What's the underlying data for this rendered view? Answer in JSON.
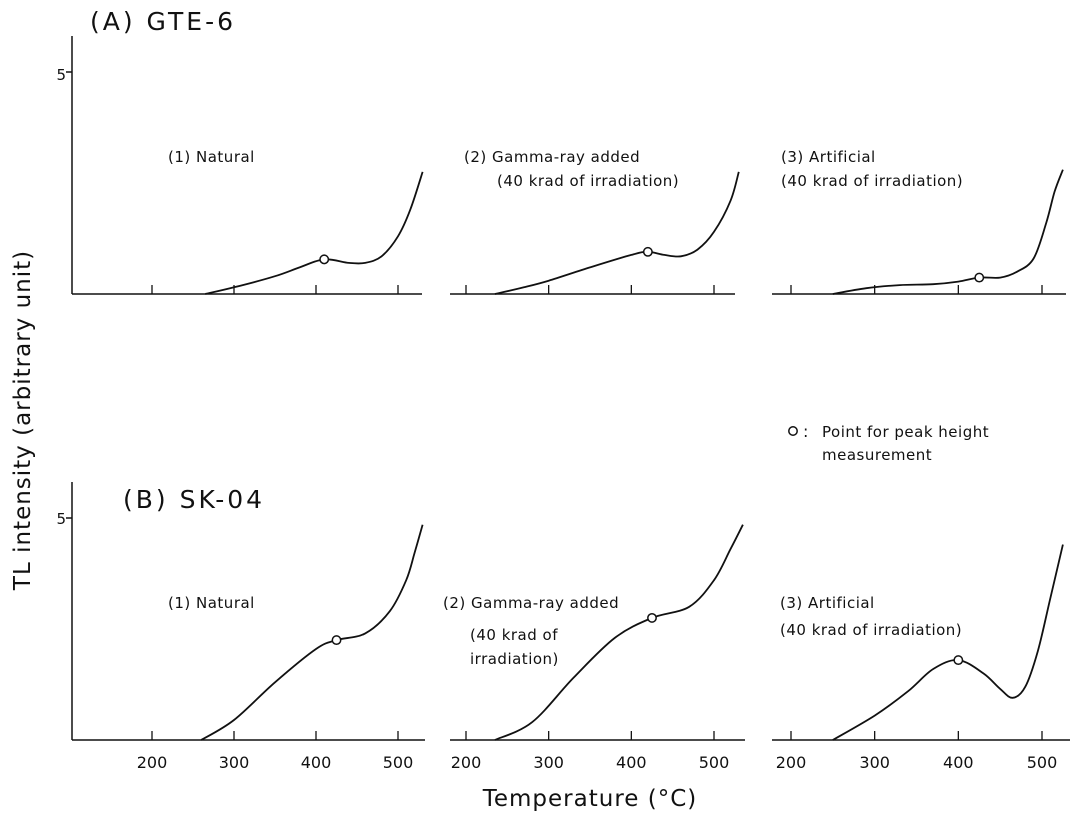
{
  "figure": {
    "ylabel": "TL intensity (arbitrary unit)",
    "xlabel": "Temperature (°C)",
    "marker_note_symbol": "o :",
    "marker_note_line1": "Point for peak height",
    "marker_note_line2": "measurement"
  },
  "rows": [
    {
      "label": "(A) GTE-6",
      "ytick": "5"
    },
    {
      "label": "(B) SK-04",
      "ytick": "5"
    }
  ],
  "chart_data": [
    {
      "type": "line",
      "panel": "A1",
      "title": "(1) Natural",
      "subtitle": "",
      "x_ticks": [
        200,
        300,
        400,
        500
      ],
      "x_tick_labels_shown": false,
      "ylim": [
        0,
        5
      ],
      "xlim": [
        105,
        530
      ],
      "x": [
        265,
        300,
        350,
        380,
        410,
        440,
        460,
        480,
        500,
        515,
        530
      ],
      "y": [
        0,
        0.15,
        0.4,
        0.6,
        0.78,
        0.7,
        0.7,
        0.85,
        1.3,
        1.9,
        2.75
      ],
      "peak_point": {
        "x": 410,
        "y": 0.78
      }
    },
    {
      "type": "line",
      "panel": "A2",
      "title": "(2) Gamma-ray added",
      "subtitle": "(40 krad of irradiation)",
      "x_ticks": [
        200,
        300,
        400,
        500
      ],
      "x_tick_labels_shown": false,
      "ylim": [
        0,
        5
      ],
      "xlim": [
        170,
        530
      ],
      "x": [
        235,
        270,
        300,
        350,
        400,
        420,
        440,
        460,
        480,
        500,
        520,
        530
      ],
      "y": [
        0,
        0.15,
        0.3,
        0.6,
        0.88,
        0.95,
        0.88,
        0.85,
        1.0,
        1.4,
        2.1,
        2.75
      ],
      "peak_point": {
        "x": 420,
        "y": 0.95
      }
    },
    {
      "type": "line",
      "panel": "A3",
      "title": "(3) Artificial",
      "subtitle": "(40 krad of irradiation)",
      "x_ticks": [
        200,
        300,
        400,
        500
      ],
      "x_tick_labels_shown": false,
      "ylim": [
        0,
        5
      ],
      "xlim": [
        170,
        525
      ],
      "x": [
        250,
        290,
        330,
        370,
        400,
        425,
        450,
        470,
        490,
        505,
        515,
        525
      ],
      "y": [
        0,
        0.13,
        0.2,
        0.22,
        0.28,
        0.37,
        0.37,
        0.5,
        0.8,
        1.6,
        2.3,
        2.8
      ],
      "peak_point": {
        "x": 425,
        "y": 0.37
      }
    },
    {
      "type": "line",
      "panel": "B1",
      "title": "(1) Natural",
      "subtitle": "",
      "x_ticks": [
        200,
        300,
        400,
        500
      ],
      "x_tick_labels_shown": true,
      "ylim": [
        0,
        5
      ],
      "xlim": [
        105,
        530
      ],
      "x": [
        260,
        300,
        350,
        400,
        425,
        460,
        490,
        510,
        520,
        530
      ],
      "y": [
        0,
        0.45,
        1.3,
        2.05,
        2.25,
        2.4,
        2.9,
        3.6,
        4.2,
        4.85
      ],
      "peak_point": {
        "x": 425,
        "y": 2.25
      }
    },
    {
      "type": "line",
      "panel": "B2",
      "title": "(2) Gamma-ray added",
      "subtitle": "(40 krad of irradiation)",
      "x_ticks": [
        200,
        300,
        400,
        500
      ],
      "x_tick_labels_shown": true,
      "ylim": [
        0,
        5
      ],
      "xlim": [
        170,
        535
      ],
      "x": [
        235,
        280,
        330,
        380,
        425,
        470,
        500,
        520,
        535
      ],
      "y": [
        0,
        0.4,
        1.4,
        2.3,
        2.75,
        3.0,
        3.6,
        4.3,
        4.85
      ],
      "peak_point": {
        "x": 425,
        "y": 2.75
      }
    },
    {
      "type": "line",
      "panel": "B3",
      "title": "(3) Artificial",
      "subtitle": "(40 krad of irradiation)",
      "x_ticks": [
        200,
        300,
        400,
        500
      ],
      "x_tick_labels_shown": true,
      "ylim": [
        0,
        5
      ],
      "xlim": [
        170,
        525
      ],
      "x": [
        250,
        300,
        340,
        370,
        400,
        430,
        450,
        465,
        480,
        495,
        510,
        525
      ],
      "y": [
        0,
        0.55,
        1.1,
        1.6,
        1.8,
        1.5,
        1.15,
        0.95,
        1.2,
        2.0,
        3.2,
        4.4
      ],
      "peak_point": {
        "x": 400,
        "y": 1.8
      }
    }
  ]
}
